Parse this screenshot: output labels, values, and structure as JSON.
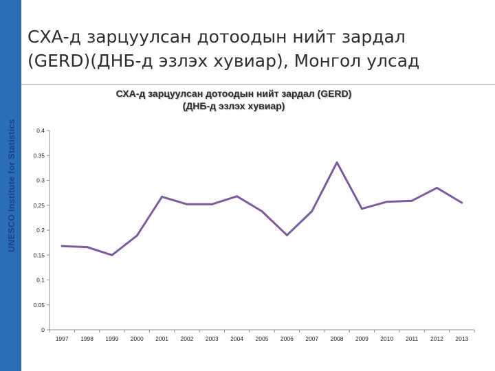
{
  "side_label": "UNESCO Institute for Statistics",
  "slide_title": {
    "line1": "СХА-д зарцуулсан дотоодын нийт зардал",
    "line2": "(GERD)(ДНБ-д эзлэх хувиар), Монгол улсад"
  },
  "colors": {
    "side_bar": "#2a6fb4",
    "side_label": "#1a3f8c",
    "line": "#7b5a9e"
  },
  "chart_data": {
    "type": "line",
    "title_line1": "СХА-д зарцуулсан дотоодын нийт зардал (GERD)",
    "title_line2": "(ДНБ-д эзлэх хувиар)",
    "xlabel": "",
    "ylabel": "",
    "ylim": [
      0,
      0.4
    ],
    "y_ticks": [
      "0",
      "0.05",
      "0.1",
      "0.15",
      "0.2",
      "0.25",
      "0.3",
      "0.35",
      "0.4"
    ],
    "categories": [
      "1997",
      "1998",
      "1999",
      "2000",
      "2001",
      "2002",
      "2003",
      "2004",
      "2005",
      "2006",
      "2007",
      "2008",
      "2009",
      "2010",
      "2011",
      "2012",
      "2013"
    ],
    "series": [
      {
        "values": [
          0.168,
          0.166,
          0.15,
          0.189,
          0.267,
          0.252,
          0.252,
          0.268,
          0.238,
          0.19,
          0.238,
          0.336,
          0.243,
          0.257,
          0.259,
          0.285,
          0.255
        ]
      }
    ],
    "grid": false,
    "legend": "none"
  }
}
